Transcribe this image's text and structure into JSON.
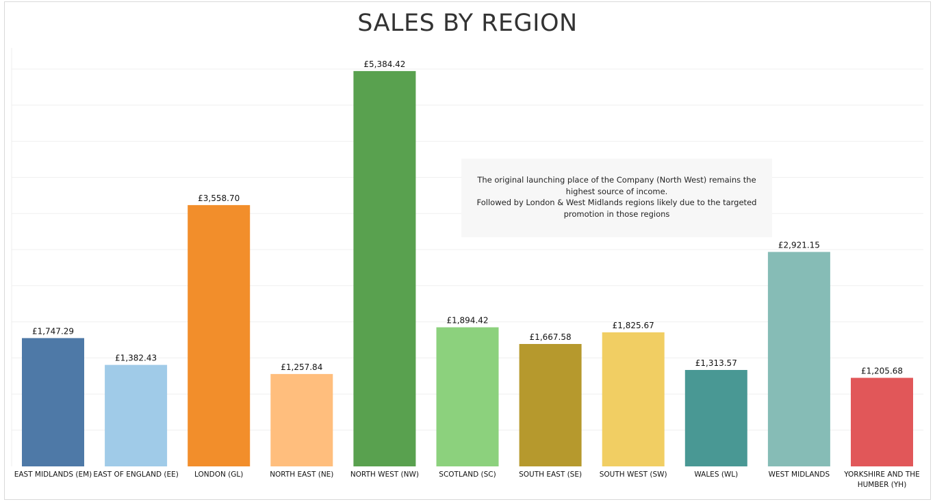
{
  "chart_data": {
    "type": "bar",
    "title": "SALES BY REGION",
    "xlabel": "",
    "ylabel": "",
    "ylim": [
      0,
      5700
    ],
    "grid": true,
    "categories": [
      "EAST MIDLANDS (EM)",
      "EAST OF ENGLAND (EE)",
      "LONDON (GL)",
      "NORTH EAST (NE)",
      "NORTH WEST (NW)",
      "SCOTLAND (SC)",
      "SOUTH EAST (SE)",
      "SOUTH WEST (SW)",
      "WALES (WL)",
      "WEST MIDLANDS",
      "YORKSHIRE AND THE HUMBER (YH)"
    ],
    "values": [
      1747.29,
      1382.43,
      3558.7,
      1257.84,
      5384.42,
      1894.42,
      1667.58,
      1825.67,
      1313.57,
      2921.15,
      1205.68
    ],
    "data_labels": [
      "£1,747.29",
      "£1,382.43",
      "£3,558.70",
      "£1,257.84",
      "£5,384.42",
      "£1,894.42",
      "£1,667.58",
      "£1,825.67",
      "£1,313.57",
      "£2,921.15",
      "£1,205.68"
    ],
    "colors": [
      "#4e79a7",
      "#a0cbe8",
      "#f28e2b",
      "#ffbe7d",
      "#59a14f",
      "#8cd17d",
      "#b6992d",
      "#f1ce63",
      "#499894",
      "#86bcb6",
      "#e15759"
    ],
    "annotation": [
      "The original launching place of the Company (North West) remains the",
      "highest source of income.",
      "Followed by London & West Midlands regions likely due to the targeted",
      "promotion in those regions"
    ]
  }
}
